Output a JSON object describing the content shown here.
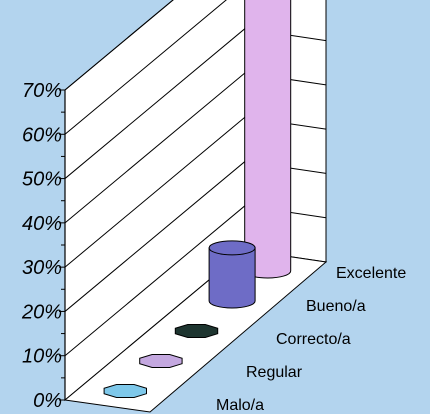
{
  "chart_data": {
    "type": "bar",
    "bar_style": "3d-cylinder",
    "categories": [
      "Malo/a",
      "Regular",
      "Correcto/a",
      "Bueno/a",
      "Excelente"
    ],
    "values": [
      0,
      0,
      0,
      12,
      63
    ],
    "colors": [
      "#7ec8ea",
      "#c4a8e0",
      "#1e3530",
      "#6e6cc6",
      "#e0b4ec"
    ],
    "ylim": [
      0,
      70
    ],
    "y_ticks": [
      "0%",
      "10%",
      "20%",
      "30%",
      "40%",
      "50%",
      "60%",
      "70%"
    ],
    "grid": true,
    "title": "",
    "xlabel": "",
    "ylabel": ""
  }
}
